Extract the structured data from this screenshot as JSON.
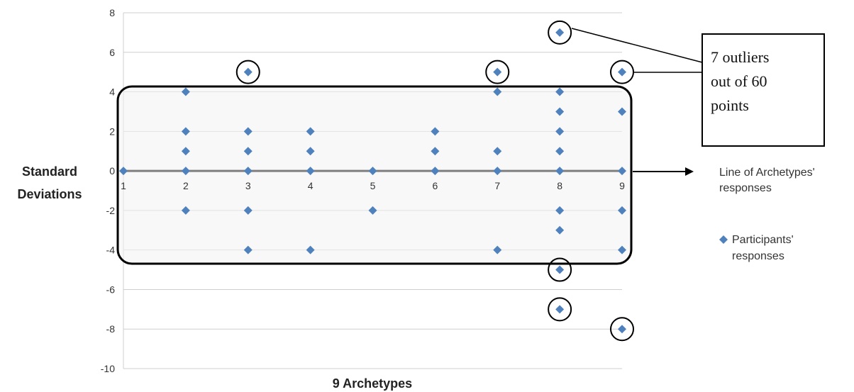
{
  "chart_data": {
    "type": "scatter",
    "xlabel": "9 Archetypes",
    "ylabel_lines": [
      "Standard",
      "Deviations"
    ],
    "xlim": [
      1,
      9
    ],
    "ylim": [
      -10,
      8
    ],
    "yticks": [
      -10,
      -8,
      -6,
      -4,
      -2,
      0,
      2,
      4,
      6,
      8
    ],
    "xticks": [
      1,
      2,
      3,
      4,
      5,
      6,
      7,
      8,
      9
    ],
    "grid": "horizontal",
    "series": [
      {
        "name": "Participants' responses",
        "color": "#4f81bd",
        "marker": "diamond",
        "points": [
          [
            1,
            0
          ],
          [
            2,
            4
          ],
          [
            2,
            2
          ],
          [
            2,
            1
          ],
          [
            2,
            0
          ],
          [
            2,
            -2
          ],
          [
            3,
            5
          ],
          [
            3,
            2
          ],
          [
            3,
            1
          ],
          [
            3,
            0
          ],
          [
            3,
            -2
          ],
          [
            3,
            -4
          ],
          [
            4,
            2
          ],
          [
            4,
            1
          ],
          [
            4,
            0
          ],
          [
            4,
            -4
          ],
          [
            5,
            0
          ],
          [
            5,
            -2
          ],
          [
            6,
            2
          ],
          [
            6,
            1
          ],
          [
            6,
            0
          ],
          [
            7,
            5
          ],
          [
            7,
            4
          ],
          [
            7,
            1
          ],
          [
            7,
            0
          ],
          [
            7,
            -4
          ],
          [
            8,
            7
          ],
          [
            8,
            4
          ],
          [
            8,
            3
          ],
          [
            8,
            2
          ],
          [
            8,
            1
          ],
          [
            8,
            0
          ],
          [
            8,
            -2
          ],
          [
            8,
            -3
          ],
          [
            8,
            -5
          ],
          [
            8,
            -7
          ],
          [
            9,
            5
          ],
          [
            9,
            3
          ],
          [
            9,
            0
          ],
          [
            9,
            -2
          ],
          [
            9,
            -4
          ],
          [
            9,
            -8
          ]
        ]
      },
      {
        "name": "Line of Archetypes' responses",
        "name_lines": [
          "Line of Archetypes'",
          "responses"
        ],
        "color": "#7f7f7f",
        "type": "line",
        "points": [
          [
            1,
            0
          ],
          [
            9,
            0
          ]
        ]
      }
    ],
    "outliers": [
      [
        3,
        5
      ],
      [
        7,
        5
      ],
      [
        8,
        7
      ],
      [
        9,
        5
      ],
      [
        8,
        -5
      ],
      [
        8,
        -7
      ],
      [
        9,
        -8
      ]
    ],
    "legend": {
      "position": "right",
      "participants_lines": [
        "Participants'",
        "responses"
      ]
    },
    "annotation": {
      "lines": [
        "7 outliers",
        "out of 60",
        "points"
      ]
    }
  }
}
